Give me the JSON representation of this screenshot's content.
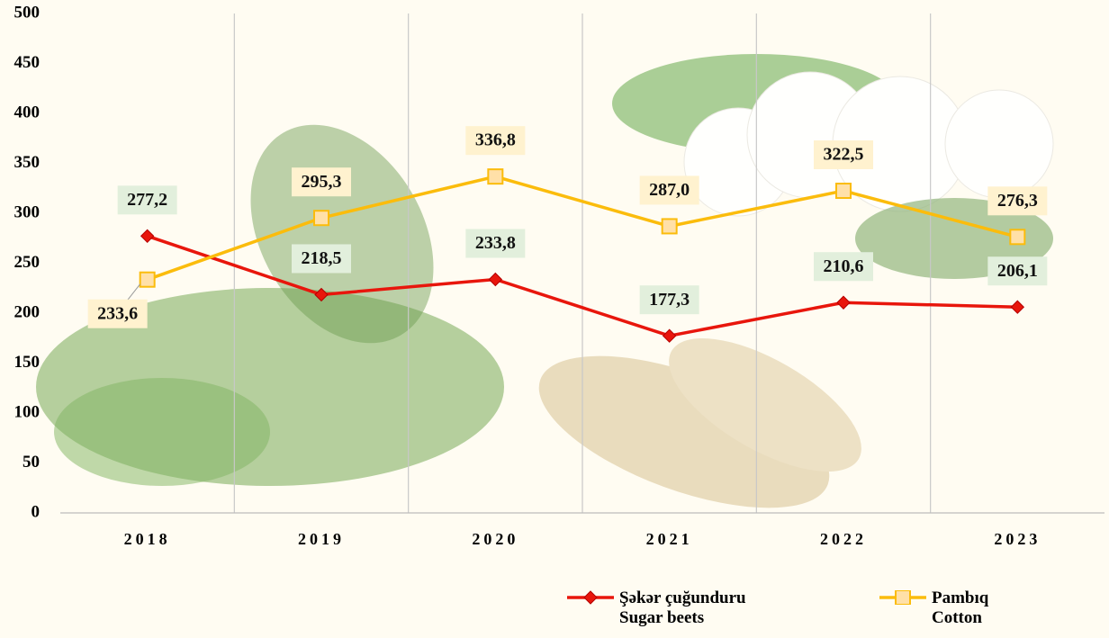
{
  "chart_data": {
    "type": "line",
    "categories": [
      "2018",
      "2019",
      "2020",
      "2021",
      "2022",
      "2023"
    ],
    "series": [
      {
        "name": "Şəkər çuğunduru\nSugar beets",
        "color": "#e8160c",
        "marker": "diamond",
        "values": [
          277.2,
          218.5,
          233.8,
          177.3,
          210.6,
          206.1
        ],
        "value_labels": [
          "277,2",
          "218,5",
          "233,8",
          "177,3",
          "210,6",
          "206,1"
        ]
      },
      {
        "name": "Pambıq\nCotton",
        "color": "#fbbc0c",
        "marker": "square",
        "values": [
          233.6,
          295.3,
          336.8,
          287.0,
          322.5,
          276.3
        ],
        "value_labels": [
          "233,6",
          "295,3",
          "336,8",
          "287,0",
          "322,5",
          "276,3"
        ]
      }
    ],
    "ylim": [
      0,
      500
    ],
    "yticks": [
      0,
      50,
      100,
      150,
      200,
      250,
      300,
      350,
      400,
      450,
      500
    ],
    "grid": true
  }
}
